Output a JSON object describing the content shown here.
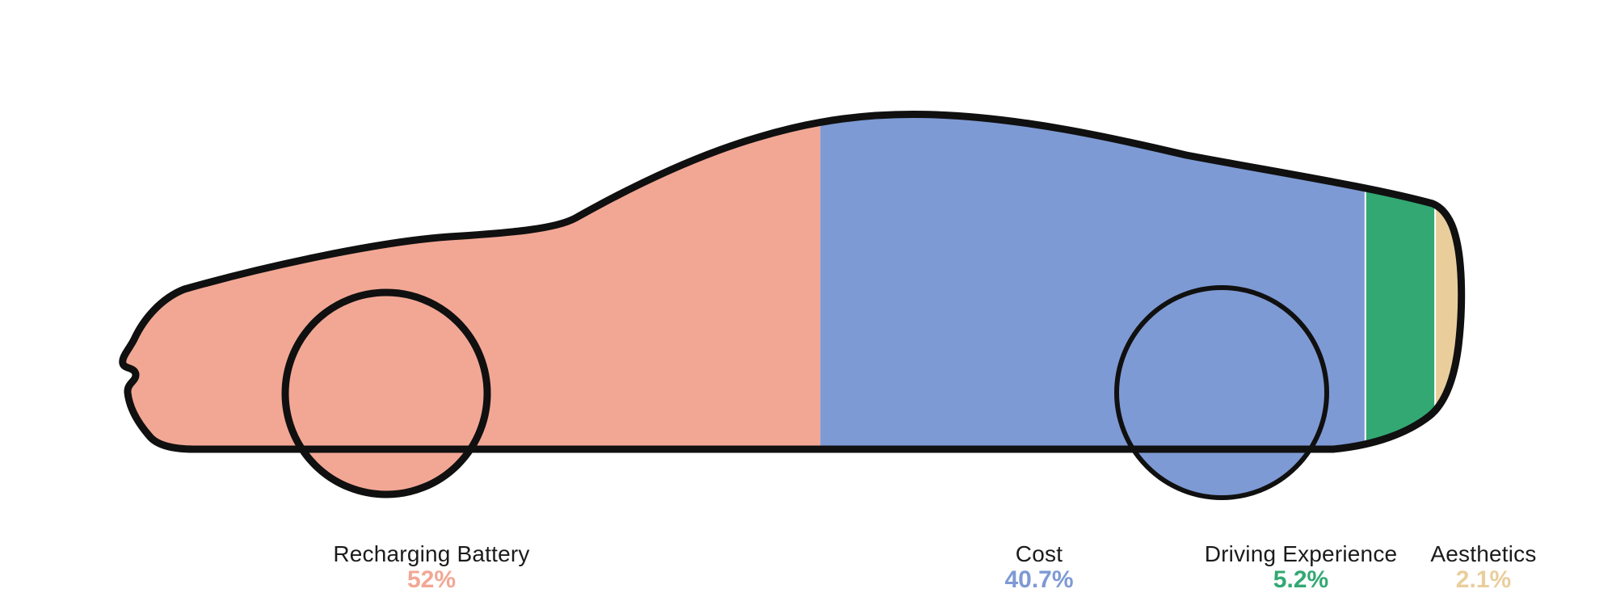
{
  "chart_data": {
    "type": "bar",
    "variant": "car-silhouette proportional stacked percentage chart",
    "title": "",
    "categories": [
      "Recharging Battery",
      "Cost",
      "Driving Experience",
      "Aesthetics"
    ],
    "values": [
      52,
      40.7,
      5.2,
      2.1
    ],
    "value_labels": [
      "52%",
      "40.7%",
      "5.2%",
      "2.1%"
    ],
    "unit": "%",
    "colors": [
      "#F2A795",
      "#7E9AD4",
      "#33A873",
      "#E9CE9C"
    ],
    "outline_color": "#101010",
    "background": "#FFFFFF",
    "label_color": "#1B1B1B",
    "layout": {
      "orientation": "horizontal",
      "legend": "none",
      "grid": false,
      "separators_after": [
        1,
        2
      ],
      "value_labels_cropped_at_bottom": true
    }
  }
}
